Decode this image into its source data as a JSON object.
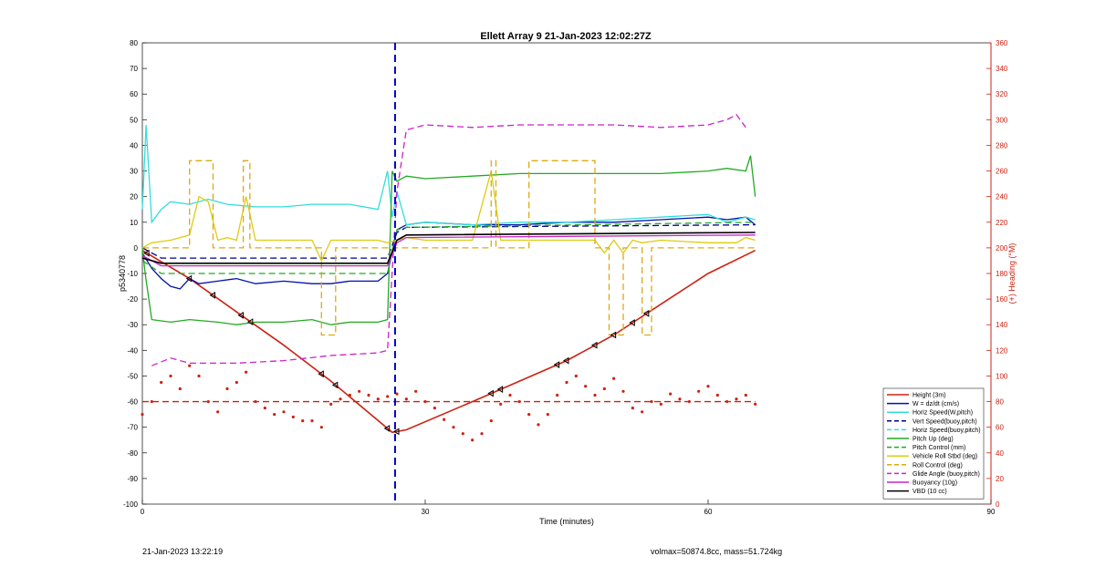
{
  "chart_data": {
    "type": "line",
    "title": "Ellett Array 9 21-Jan-2023 12:02:27Z",
    "xlabel": "Time (minutes)",
    "ylabel_left": "p5340778",
    "ylabel_right": "(+) Heading (°M)",
    "xlim": [
      0,
      90
    ],
    "ylim_left": [
      -100,
      80
    ],
    "ylim_right": [
      0,
      360
    ],
    "xticks": [
      "0",
      "30",
      "60",
      "90"
    ],
    "yticks_left": [
      "-100",
      "-90",
      "-80",
      "-70",
      "-60",
      "-50",
      "-40",
      "-30",
      "-20",
      "-10",
      "0",
      "10",
      "20",
      "30",
      "40",
      "50",
      "60",
      "70",
      "80"
    ],
    "yticks_right": [
      "0",
      "20",
      "40",
      "60",
      "80",
      "100",
      "120",
      "140",
      "160",
      "180",
      "200",
      "220",
      "240",
      "260",
      "280",
      "300",
      "320",
      "340",
      "360"
    ],
    "grid": false,
    "legend_position": "bottom-right",
    "vline": {
      "x": 26.8,
      "color": "#0000cc",
      "style": "dashed"
    },
    "series": [
      {
        "name": "Height (3m)",
        "color": "#cc2211",
        "style": "solid",
        "width": 1.6,
        "x": [
          0,
          5,
          10,
          15,
          20,
          26.5,
          28,
          35,
          40,
          45,
          50,
          55,
          60,
          65
        ],
        "y": [
          -1,
          -12,
          -25,
          -38,
          -52,
          -72,
          -71,
          -60,
          -52,
          -44,
          -34,
          -22,
          -10,
          -1
        ]
      },
      {
        "name": "W = dz/dt (cm/s)",
        "color": "#0011aa",
        "style": "solid",
        "width": 1.3,
        "x": [
          0,
          1,
          2,
          3,
          4,
          5,
          6,
          8,
          10,
          12,
          15,
          18,
          20,
          22,
          25,
          26,
          27,
          28,
          30,
          35,
          40,
          45,
          50,
          55,
          60,
          62,
          64,
          65
        ],
        "y": [
          -2,
          -8,
          -12,
          -15,
          -16,
          -12,
          -14,
          -13,
          -12,
          -14,
          -13,
          -14,
          -14,
          -13,
          -13,
          -10,
          7,
          9,
          10,
          9,
          9,
          10,
          10,
          11,
          12,
          11,
          12,
          9
        ]
      },
      {
        "name": "Horiz Speed(W,pitch)",
        "color": "#33dddd",
        "style": "solid",
        "width": 1.3,
        "x": [
          0,
          0.4,
          1,
          2,
          3,
          5,
          7,
          9,
          12,
          15,
          18,
          22,
          25,
          26,
          26.5,
          27,
          28,
          30,
          35,
          40,
          45,
          50,
          55,
          60,
          62,
          64,
          65
        ],
        "y": [
          15,
          48,
          10,
          15,
          18,
          17,
          19,
          17,
          16,
          16,
          17,
          17,
          15,
          30,
          12,
          22,
          9,
          10,
          9,
          10,
          10,
          11,
          12,
          13,
          10,
          12,
          11
        ]
      },
      {
        "name": "Vert Speed(buoy,pitch)",
        "color": "#000088",
        "style": "dashed",
        "width": 1.3,
        "x": [
          0,
          2,
          26,
          27,
          28,
          65
        ],
        "y": [
          0,
          -4,
          -4,
          6,
          8,
          9
        ]
      },
      {
        "name": "Horiz Speed(buoy,pitch)",
        "color": "#33dddd",
        "style": "dashed",
        "width": 1.3,
        "x": [
          0,
          65
        ],
        "y": [
          null,
          null
        ]
      },
      {
        "name": "Pitch Up (deg)",
        "color": "#22aa22",
        "style": "solid",
        "width": 1.3,
        "x": [
          0,
          0.3,
          1,
          3,
          5,
          8,
          10,
          12,
          15,
          18,
          20,
          22,
          25,
          26,
          26.5,
          27,
          28,
          30,
          35,
          40,
          45,
          50,
          55,
          60,
          62,
          64,
          64.5,
          65
        ],
        "y": [
          0,
          -10,
          -28,
          -29,
          -28,
          -29,
          -30,
          -29,
          -29,
          -28,
          -30,
          -29,
          -29,
          -28,
          30,
          26,
          28,
          27,
          28,
          29,
          29,
          29,
          29,
          30,
          31,
          30,
          36,
          20
        ]
      },
      {
        "name": "Pitch Control (mm)",
        "color": "#22aa22",
        "style": "dashed",
        "width": 1.3,
        "x": [
          0,
          2,
          26,
          27,
          28,
          65
        ],
        "y": [
          -5,
          -10,
          -10,
          7,
          8,
          10
        ]
      },
      {
        "name": "Vehicle Roll Stbd (deg)",
        "color": "#ddcc11",
        "style": "solid",
        "width": 1.3,
        "x": [
          0,
          1,
          3,
          5,
          6,
          7,
          8,
          9,
          10,
          11,
          12,
          15,
          18,
          19,
          20,
          21,
          25,
          26,
          27,
          28,
          30,
          35,
          37,
          38,
          40,
          45,
          48,
          49,
          50,
          51,
          52,
          53,
          55,
          60,
          63,
          64,
          65
        ],
        "y": [
          0,
          2,
          3,
          5,
          20,
          18,
          3,
          4,
          3,
          20,
          3,
          3,
          3,
          -5,
          3,
          3,
          3,
          2,
          3,
          4,
          3,
          3,
          30,
          3,
          3,
          3,
          3,
          -2,
          3,
          -2,
          3,
          2,
          3,
          2,
          2,
          4,
          3
        ]
      },
      {
        "name": "Roll Control (deg)",
        "color": "#ddaa11",
        "style": "dashed",
        "width": 1.3,
        "x": [
          0,
          5,
          5,
          7.5,
          7.5,
          10.7,
          10.7,
          11.4,
          11.4,
          19,
          19,
          20.5,
          20.5,
          26,
          27,
          37,
          37,
          37.5,
          37.5,
          41,
          41,
          48,
          48,
          49.5,
          49.5,
          51,
          51,
          53,
          53,
          54,
          54,
          65
        ],
        "y": [
          0,
          0,
          34,
          34,
          0,
          0,
          34,
          34,
          0,
          0,
          -34,
          -34,
          0,
          0,
          0,
          0,
          34,
          34,
          0,
          0,
          34,
          34,
          0,
          0,
          -34,
          -34,
          0,
          0,
          -34,
          -34,
          0,
          0
        ]
      },
      {
        "name": "Glide Angle (buoy,pitch)",
        "color": "#cc22cc",
        "style": "dashed",
        "width": 1.3,
        "x": [
          1,
          3,
          5,
          10,
          15,
          20,
          25,
          26,
          27,
          28,
          30,
          35,
          40,
          45,
          50,
          55,
          60,
          62,
          63,
          64
        ],
        "y": [
          -46,
          -43,
          -45,
          -45,
          -44,
          -42,
          -41,
          -40,
          22,
          46,
          48,
          47,
          48,
          48,
          48,
          47,
          48,
          50,
          52,
          47
        ]
      },
      {
        "name": "Buoyancy (10g)",
        "color": "#cc22cc",
        "style": "solid",
        "width": 1.3,
        "x": [
          0,
          2,
          26,
          27,
          28,
          65
        ],
        "y": [
          -3,
          -7,
          -7,
          2,
          4,
          5
        ]
      },
      {
        "name": "VBD (10 cc)",
        "color": "#000000",
        "style": "solid",
        "width": 1.6,
        "x": [
          0,
          2,
          26,
          27,
          28,
          65
        ],
        "y": [
          -4,
          -6,
          -6,
          3,
          5,
          6
        ]
      }
    ],
    "heading_series": {
      "color": "#cc2211",
      "style": "dotted",
      "axis": "right",
      "x": [
        0,
        1,
        2,
        3,
        4,
        5,
        6,
        7,
        8,
        9,
        10,
        11,
        12,
        13,
        14,
        15,
        16,
        17,
        18,
        19,
        20,
        21,
        22,
        23,
        24,
        25,
        26,
        27,
        28,
        29,
        30,
        31,
        32,
        33,
        34,
        35,
        36,
        37,
        38,
        39,
        40,
        41,
        42,
        43,
        44,
        45,
        46,
        47,
        48,
        49,
        50,
        51,
        52,
        53,
        54,
        55,
        56,
        57,
        58,
        59,
        60,
        61,
        62,
        63,
        64,
        65
      ],
      "y": [
        70,
        80,
        95,
        100,
        90,
        108,
        100,
        80,
        72,
        90,
        95,
        103,
        80,
        75,
        70,
        72,
        68,
        65,
        65,
        60,
        78,
        82,
        85,
        88,
        85,
        82,
        84,
        86,
        82,
        88,
        80,
        75,
        66,
        60,
        55,
        50,
        55,
        65,
        78,
        85,
        80,
        70,
        62,
        70,
        85,
        95,
        100,
        92,
        85,
        90,
        98,
        88,
        75,
        72,
        80,
        78,
        86,
        82,
        80,
        88,
        92,
        85,
        80,
        82,
        85,
        78
      ]
    },
    "heading_ref": {
      "y": 80,
      "axis": "right",
      "color": "#cc2211",
      "style": "dashed"
    },
    "markers": {
      "color": "#000000",
      "on": "Height (3m)",
      "x": [
        0.5,
        5,
        7.5,
        10.5,
        11.5,
        19,
        20.5,
        26,
        27,
        37,
        38,
        44,
        45,
        48,
        50,
        52,
        53.5
      ]
    }
  },
  "footer": {
    "timestamp": "21-Jan-2023 13:22:19",
    "stats": "volmax=50874.8cc, mass=51.724kg"
  }
}
